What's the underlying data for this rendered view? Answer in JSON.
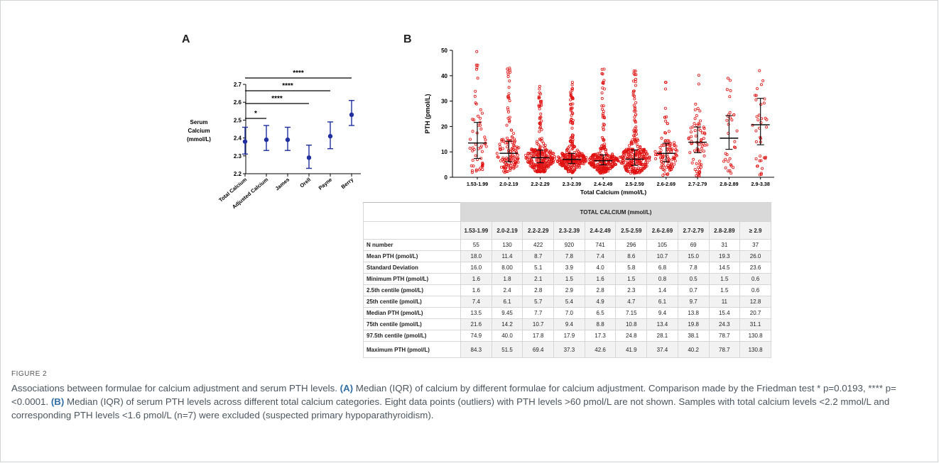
{
  "panel_a": {
    "label": "A",
    "ylabel_lines": [
      "Serum",
      "Calcium",
      "(mmol/L)"
    ],
    "sig_labels": [
      "****",
      "****",
      "****",
      "*"
    ]
  },
  "panel_b": {
    "label": "B",
    "ylabel": "PTH (pmol/L)",
    "xlabel": "Total Calcium  (mmol/L)"
  },
  "chart_data": [
    {
      "type": "scatter",
      "title": "",
      "xlabel": "",
      "ylabel": "Serum Calcium (mmol/L)",
      "ylim": [
        2.2,
        2.7
      ],
      "yticks": [
        "2.2",
        "2.3",
        "2.4",
        "2.5",
        "2.6",
        "2.7"
      ],
      "categories": [
        "Total Calcium",
        "Adjusted Calcium",
        "James",
        "Orell",
        "Payne",
        "Berry"
      ],
      "median": [
        2.38,
        2.39,
        2.39,
        2.29,
        2.41,
        2.53
      ],
      "q1": [
        2.31,
        2.33,
        2.33,
        2.23,
        2.34,
        2.47
      ],
      "q3": [
        2.46,
        2.47,
        2.46,
        2.36,
        2.49,
        2.61
      ],
      "color": "#1f2fa0",
      "significance": [
        {
          "from": "Total Calcium",
          "to": "Berry",
          "label": "****"
        },
        {
          "from": "Total Calcium",
          "to": "Payne",
          "label": "****"
        },
        {
          "from": "Total Calcium",
          "to": "Orell",
          "label": "****"
        },
        {
          "from": "Total Calcium",
          "to": "Adjusted Calcium",
          "label": "*"
        }
      ]
    },
    {
      "type": "scatter",
      "title": "",
      "xlabel": "Total Calcium  (mmol/L)",
      "ylabel": "PTH (pmol/L)",
      "ylim": [
        0,
        50
      ],
      "yticks": [
        "0",
        "10",
        "20",
        "30",
        "40",
        "50"
      ],
      "categories": [
        "1.53-1.99",
        "2.0-2.19",
        "2.2-2.29",
        "2.3-2.39",
        "2.4-2.49",
        "2.5-2.59",
        "2.6-2.69",
        "2.7-2.79",
        "2.8-2.89",
        "2.9-3.38"
      ],
      "n": [
        55,
        130,
        422,
        920,
        741,
        296,
        105,
        69,
        31,
        37
      ],
      "median": [
        13.5,
        9.45,
        7.7,
        7.0,
        6.5,
        7.15,
        9.4,
        13.8,
        15.4,
        20.7
      ],
      "q1": [
        7.4,
        6.1,
        5.7,
        5.4,
        4.9,
        4.7,
        6.1,
        9.7,
        11,
        12.8
      ],
      "q3": [
        21.6,
        14.2,
        10.7,
        9.4,
        8.8,
        10.8,
        13.4,
        19.8,
        24.3,
        31.1
      ],
      "min": [
        1.6,
        1.8,
        2.1,
        1.5,
        1.6,
        1.5,
        0.8,
        0.5,
        1.5,
        0.6
      ],
      "max_shown": [
        49.5,
        43,
        35.8,
        37.4,
        42.6,
        41.9,
        37.4,
        40.2,
        39,
        42
      ],
      "point_color": "#e01010"
    }
  ],
  "table": {
    "group_header": "TOTAL CALCIUM (mmol/L)",
    "columns": [
      "1.53-1.99",
      "2.0-2.19",
      "2.2-2.29",
      "2.3-2.39",
      "2.4-2.49",
      "2.5-2.59",
      "2.6-2.69",
      "2.7-2.79",
      "2.8-2.89",
      "≥ 2.9"
    ],
    "rows": [
      {
        "label": "N number",
        "values": [
          "55",
          "130",
          "422",
          "920",
          "741",
          "296",
          "105",
          "69",
          "31",
          "37"
        ]
      },
      {
        "label": "Mean PTH (pmol/L)",
        "values": [
          "18.0",
          "11.4",
          "8.7",
          "7.8",
          "7.4",
          "8.6",
          "10.7",
          "15.0",
          "19.3",
          "26.0"
        ]
      },
      {
        "label": "Standard Deviation",
        "values": [
          "16.0",
          "8.00",
          "5.1",
          "3.9",
          "4.0",
          "5.8",
          "6.8",
          "7.8",
          "14.5",
          "23.6"
        ]
      },
      {
        "label": "Minimum PTH (pmol/L)",
        "values": [
          "1.6",
          "1.8",
          "2.1",
          "1.5",
          "1.6",
          "1.5",
          "0.8",
          "0.5",
          "1.5",
          "0.6"
        ]
      },
      {
        "label": "2.5th centile (pmol/L)",
        "values": [
          "1.6",
          "2.4",
          "2.8",
          "2.9",
          "2.8",
          "2.3",
          "1.4",
          "0.7",
          "1.5",
          "0.6"
        ]
      },
      {
        "label": "25th centile (pmol/L)",
        "values": [
          "7.4",
          "6.1",
          "5.7",
          "5.4",
          "4.9",
          "4.7",
          "6.1",
          "9.7",
          "11",
          "12.8"
        ]
      },
      {
        "label": "Median PTH (pmol/L)",
        "values": [
          "13.5",
          "9.45",
          "7.7",
          "7.0",
          "6.5",
          "7.15",
          "9.4",
          "13.8",
          "15.4",
          "20.7"
        ]
      },
      {
        "label": "75th centile (pmol/L)",
        "values": [
          "21.6",
          "14.2",
          "10.7",
          "9.4",
          "8.8",
          "10.8",
          "13.4",
          "19.8",
          "24.3",
          "31.1"
        ]
      },
      {
        "label": "97.5th centile (pmol/L)",
        "values": [
          "74.9",
          "40.0",
          "17.8",
          "17.9",
          "17.3",
          "24.8",
          "28.1",
          "38.1",
          "78.7",
          "130.8"
        ]
      },
      {
        "label": "Maximum PTH (pmol/L)",
        "values": [
          "84.3",
          "51.5",
          "69.4",
          "37.3",
          "42.6",
          "41.9",
          "37.4",
          "40.2",
          "78.7",
          "130.8"
        ]
      }
    ]
  },
  "caption": {
    "label": "FIGURE 2",
    "intro": "Associations between formulae for calcium adjustment and serum PTH levels. ",
    "a_tag": "(A)",
    "a_text": " Median (IQR) of calcium by different formulae for calcium adjustment. Comparison made by the Friedman test * p=0.0193, **** p=<0.0001. ",
    "b_tag": "(B)",
    "b_text": " Median (IQR) of serum PTH levels across different total calcium categories. Eight data points (outliers) with PTH levels >60 pmol/L are not shown. Samples with total calcium levels <2.2 mmol/L and corresponding PTH levels <1.6 pmol/L (n=7) were excluded (suspected primary hypoparathyroidism)."
  }
}
